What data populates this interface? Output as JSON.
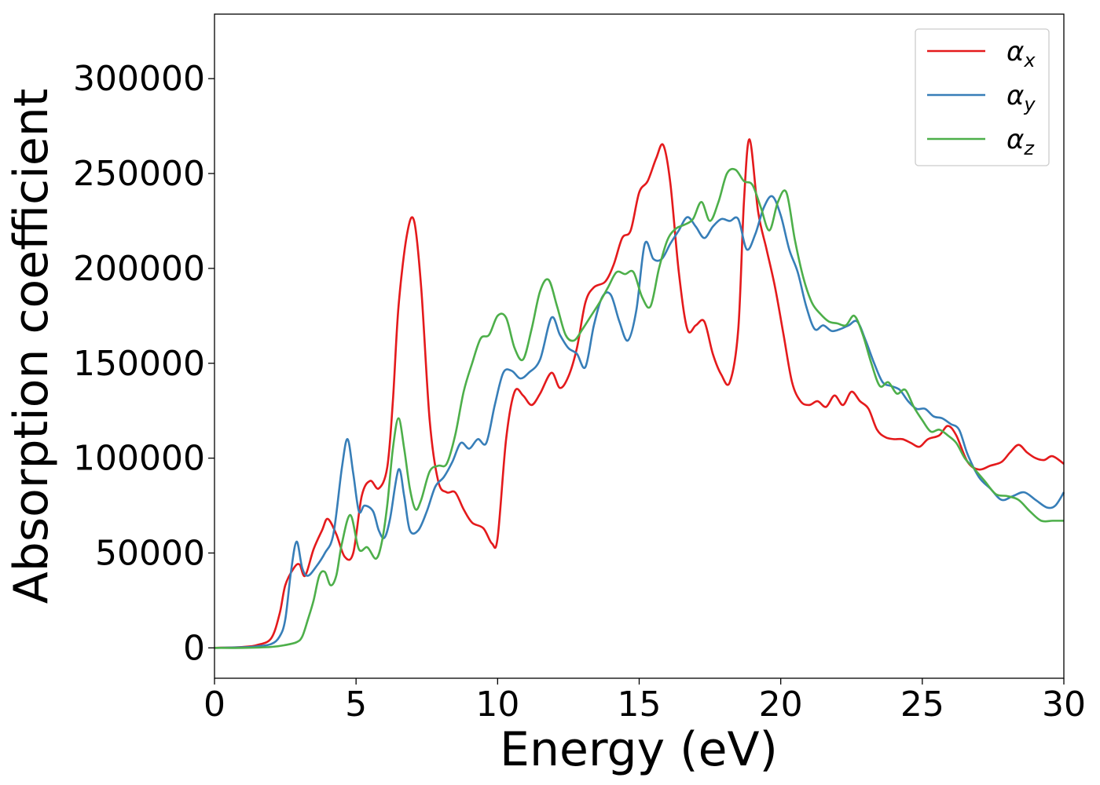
{
  "chart_data": {
    "type": "line",
    "title": "",
    "xlabel": "Energy (eV)",
    "ylabel": "Absorption coefficient",
    "xlim": [
      0,
      30
    ],
    "ylim": [
      -16000,
      334000
    ],
    "xticks": [
      0,
      5,
      10,
      15,
      20,
      25,
      30
    ],
    "yticks": [
      0,
      50000,
      100000,
      150000,
      200000,
      250000,
      300000
    ],
    "grid": false,
    "legend_position": "top-right",
    "series": [
      {
        "name": "α",
        "subscript": "x",
        "color": "#e41a1c",
        "x": [
          0,
          1,
          1.5,
          2.0,
          2.3,
          2.5,
          2.8,
          3.0,
          3.2,
          3.5,
          3.8,
          4.0,
          4.3,
          4.6,
          4.9,
          5.2,
          5.5,
          5.8,
          6.1,
          6.3,
          6.5,
          6.8,
          7.05,
          7.3,
          7.6,
          7.9,
          8.2,
          8.5,
          8.8,
          9.1,
          9.5,
          9.8,
          10.0,
          10.3,
          10.6,
          10.9,
          11.2,
          11.5,
          11.9,
          12.2,
          12.5,
          12.8,
          13.1,
          13.4,
          13.8,
          14.1,
          14.4,
          14.7,
          15.0,
          15.3,
          15.6,
          15.85,
          16.1,
          16.4,
          16.7,
          17.0,
          17.3,
          17.6,
          17.9,
          18.2,
          18.5,
          18.7,
          18.9,
          19.2,
          19.5,
          19.8,
          20.1,
          20.4,
          20.7,
          21.0,
          21.3,
          21.6,
          21.9,
          22.2,
          22.5,
          22.8,
          23.1,
          23.4,
          23.7,
          24.0,
          24.3,
          24.6,
          24.9,
          25.2,
          25.6,
          25.9,
          26.2,
          26.6,
          27.0,
          27.4,
          27.8,
          28.1,
          28.4,
          28.7,
          29.0,
          29.3,
          29.6,
          30.0
        ],
        "y": [
          0,
          500,
          1500,
          5000,
          18000,
          33000,
          42000,
          44000,
          38000,
          52000,
          62000,
          68000,
          60000,
          48000,
          50000,
          80000,
          88000,
          84000,
          95000,
          130000,
          180000,
          218000,
          225000,
          190000,
          120000,
          88000,
          82000,
          82000,
          73000,
          66000,
          63000,
          55000,
          58000,
          110000,
          135000,
          133000,
          128000,
          134000,
          145000,
          137000,
          143000,
          158000,
          182000,
          190000,
          193000,
          202000,
          216000,
          220000,
          240000,
          246000,
          258000,
          265000,
          245000,
          198000,
          168000,
          170000,
          172000,
          155000,
          144000,
          140000,
          168000,
          235000,
          268000,
          230000,
          210000,
          190000,
          165000,
          140000,
          130000,
          128000,
          130000,
          127000,
          133000,
          128000,
          135000,
          130000,
          126000,
          115000,
          111000,
          110000,
          110000,
          108000,
          106000,
          110000,
          112000,
          117000,
          112000,
          98000,
          94000,
          96000,
          98000,
          103000,
          107000,
          103000,
          100000,
          99000,
          101000,
          97000
        ]
      },
      {
        "name": "α",
        "subscript": "y",
        "color": "#377eb8",
        "x": [
          0,
          1,
          1.5,
          2.0,
          2.3,
          2.5,
          2.7,
          2.9,
          3.1,
          3.3,
          3.6,
          3.9,
          4.2,
          4.5,
          4.7,
          4.9,
          5.1,
          5.3,
          5.6,
          5.8,
          6.0,
          6.2,
          6.5,
          6.7,
          6.9,
          7.2,
          7.5,
          7.8,
          8.1,
          8.4,
          8.7,
          9.0,
          9.3,
          9.6,
          9.9,
          10.2,
          10.5,
          10.8,
          11.1,
          11.5,
          11.9,
          12.2,
          12.5,
          12.8,
          13.1,
          13.4,
          13.7,
          14.0,
          14.3,
          14.6,
          14.9,
          15.2,
          15.5,
          15.8,
          16.1,
          16.4,
          16.7,
          17.0,
          17.3,
          17.6,
          17.9,
          18.2,
          18.5,
          18.8,
          19.1,
          19.4,
          19.7,
          20.0,
          20.3,
          20.6,
          20.9,
          21.2,
          21.5,
          21.8,
          22.1,
          22.4,
          22.7,
          23.0,
          23.3,
          23.6,
          23.9,
          24.2,
          24.5,
          24.8,
          25.1,
          25.4,
          25.7,
          26.0,
          26.3,
          26.6,
          27.0,
          27.4,
          27.8,
          28.2,
          28.6,
          29.0,
          29.4,
          29.7,
          30.0
        ],
        "y": [
          0,
          300,
          800,
          2000,
          6000,
          15000,
          40000,
          56000,
          42000,
          38000,
          43000,
          50000,
          60000,
          95000,
          110000,
          92000,
          72000,
          75000,
          72000,
          62000,
          58000,
          68000,
          94000,
          80000,
          62000,
          62000,
          72000,
          85000,
          90000,
          98000,
          108000,
          105000,
          110000,
          108000,
          128000,
          145000,
          146000,
          142000,
          145000,
          152000,
          174000,
          165000,
          158000,
          155000,
          148000,
          170000,
          185000,
          186000,
          172000,
          162000,
          178000,
          213000,
          205000,
          205000,
          213000,
          220000,
          227000,
          222000,
          216000,
          222000,
          226000,
          225000,
          226000,
          210000,
          218000,
          232000,
          238000,
          228000,
          210000,
          198000,
          180000,
          168000,
          170000,
          167000,
          168000,
          170000,
          172000,
          162000,
          150000,
          140000,
          138000,
          136000,
          130000,
          126000,
          126000,
          122000,
          121000,
          118000,
          115000,
          102000,
          90000,
          84000,
          78000,
          80000,
          82000,
          78000,
          74000,
          75000,
          82000
        ]
      },
      {
        "name": "α",
        "subscript": "z",
        "color": "#4daf4a",
        "x": [
          0,
          1,
          2.0,
          2.5,
          2.9,
          3.1,
          3.3,
          3.5,
          3.7,
          3.9,
          4.1,
          4.3,
          4.5,
          4.8,
          5.1,
          5.4,
          5.7,
          5.9,
          6.1,
          6.3,
          6.5,
          6.7,
          6.9,
          7.1,
          7.3,
          7.6,
          7.9,
          8.2,
          8.5,
          8.8,
          9.1,
          9.4,
          9.7,
          10.0,
          10.3,
          10.6,
          10.9,
          11.2,
          11.5,
          11.8,
          12.1,
          12.4,
          12.7,
          13.0,
          13.3,
          13.6,
          13.9,
          14.2,
          14.5,
          14.8,
          15.1,
          15.4,
          15.7,
          16.0,
          16.3,
          16.6,
          16.9,
          17.2,
          17.5,
          17.8,
          18.1,
          18.4,
          18.7,
          19.0,
          19.3,
          19.6,
          19.9,
          20.2,
          20.5,
          20.8,
          21.1,
          21.4,
          21.7,
          22.0,
          22.3,
          22.6,
          22.9,
          23.2,
          23.5,
          23.8,
          24.1,
          24.4,
          24.7,
          25.0,
          25.3,
          25.6,
          25.9,
          26.2,
          26.5,
          26.8,
          27.2,
          27.6,
          28.0,
          28.4,
          28.8,
          29.2,
          29.6,
          30.0
        ],
        "y": [
          0,
          0,
          500,
          1500,
          3000,
          6000,
          15000,
          25000,
          38000,
          40000,
          33000,
          38000,
          55000,
          70000,
          52000,
          53000,
          47000,
          55000,
          75000,
          105000,
          121000,
          105000,
          84000,
          73000,
          78000,
          93000,
          96000,
          97000,
          112000,
          135000,
          150000,
          163000,
          165000,
          175000,
          174000,
          158000,
          152000,
          168000,
          188000,
          194000,
          180000,
          165000,
          162000,
          168000,
          175000,
          182000,
          190000,
          198000,
          197000,
          198000,
          185000,
          180000,
          200000,
          215000,
          221000,
          223000,
          226000,
          235000,
          225000,
          235000,
          250000,
          252000,
          246000,
          244000,
          232000,
          220000,
          235000,
          240000,
          215000,
          195000,
          182000,
          176000,
          172000,
          171000,
          170000,
          175000,
          165000,
          150000,
          138000,
          140000,
          134000,
          136000,
          127000,
          120000,
          114000,
          115000,
          112000,
          108000,
          100000,
          95000,
          88000,
          81000,
          80000,
          78000,
          72000,
          67000,
          67000,
          67000
        ]
      }
    ]
  }
}
